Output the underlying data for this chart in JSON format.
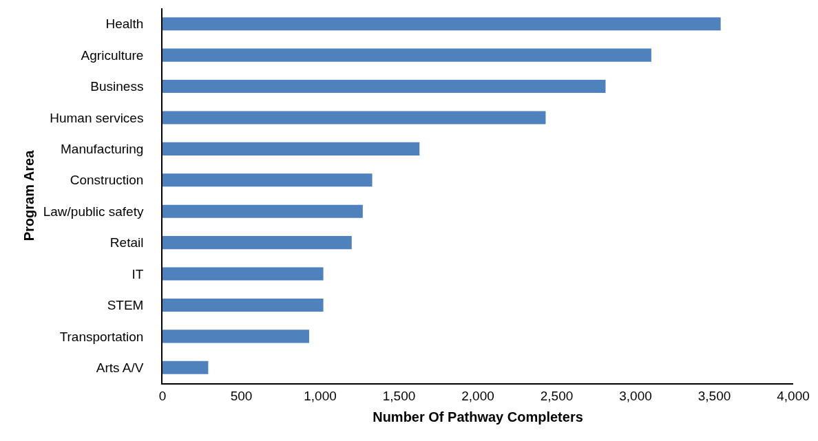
{
  "chart_data": {
    "type": "bar",
    "orientation": "horizontal",
    "xlabel": "Number Of Pathway Completers",
    "ylabel": "Program Area",
    "categories": [
      "Health",
      "Agriculture",
      "Business",
      "Human services",
      "Manufacturing",
      "Construction",
      "Law/public safety",
      "Retail",
      "IT",
      "STEM",
      "Transportation",
      "Arts A/V"
    ],
    "values": [
      3540,
      3100,
      2810,
      2430,
      1630,
      1330,
      1270,
      1200,
      1020,
      1020,
      930,
      290
    ],
    "color": "#4f81bd",
    "xlim": [
      0,
      4000
    ],
    "xticks": [
      0,
      {
        "value": 500,
        "label": "500"
      },
      {
        "value": 1000,
        "label": "1,000"
      },
      {
        "value": 1500,
        "label": "1,500"
      },
      {
        "value": 2000,
        "label": "2,000"
      },
      {
        "value": 2500,
        "label": "2,500"
      },
      {
        "value": 3000,
        "label": "3,000"
      },
      {
        "value": 3500,
        "label": "3,500"
      },
      {
        "value": 4000,
        "label": "4,000"
      }
    ],
    "grid": false,
    "legend": false
  }
}
